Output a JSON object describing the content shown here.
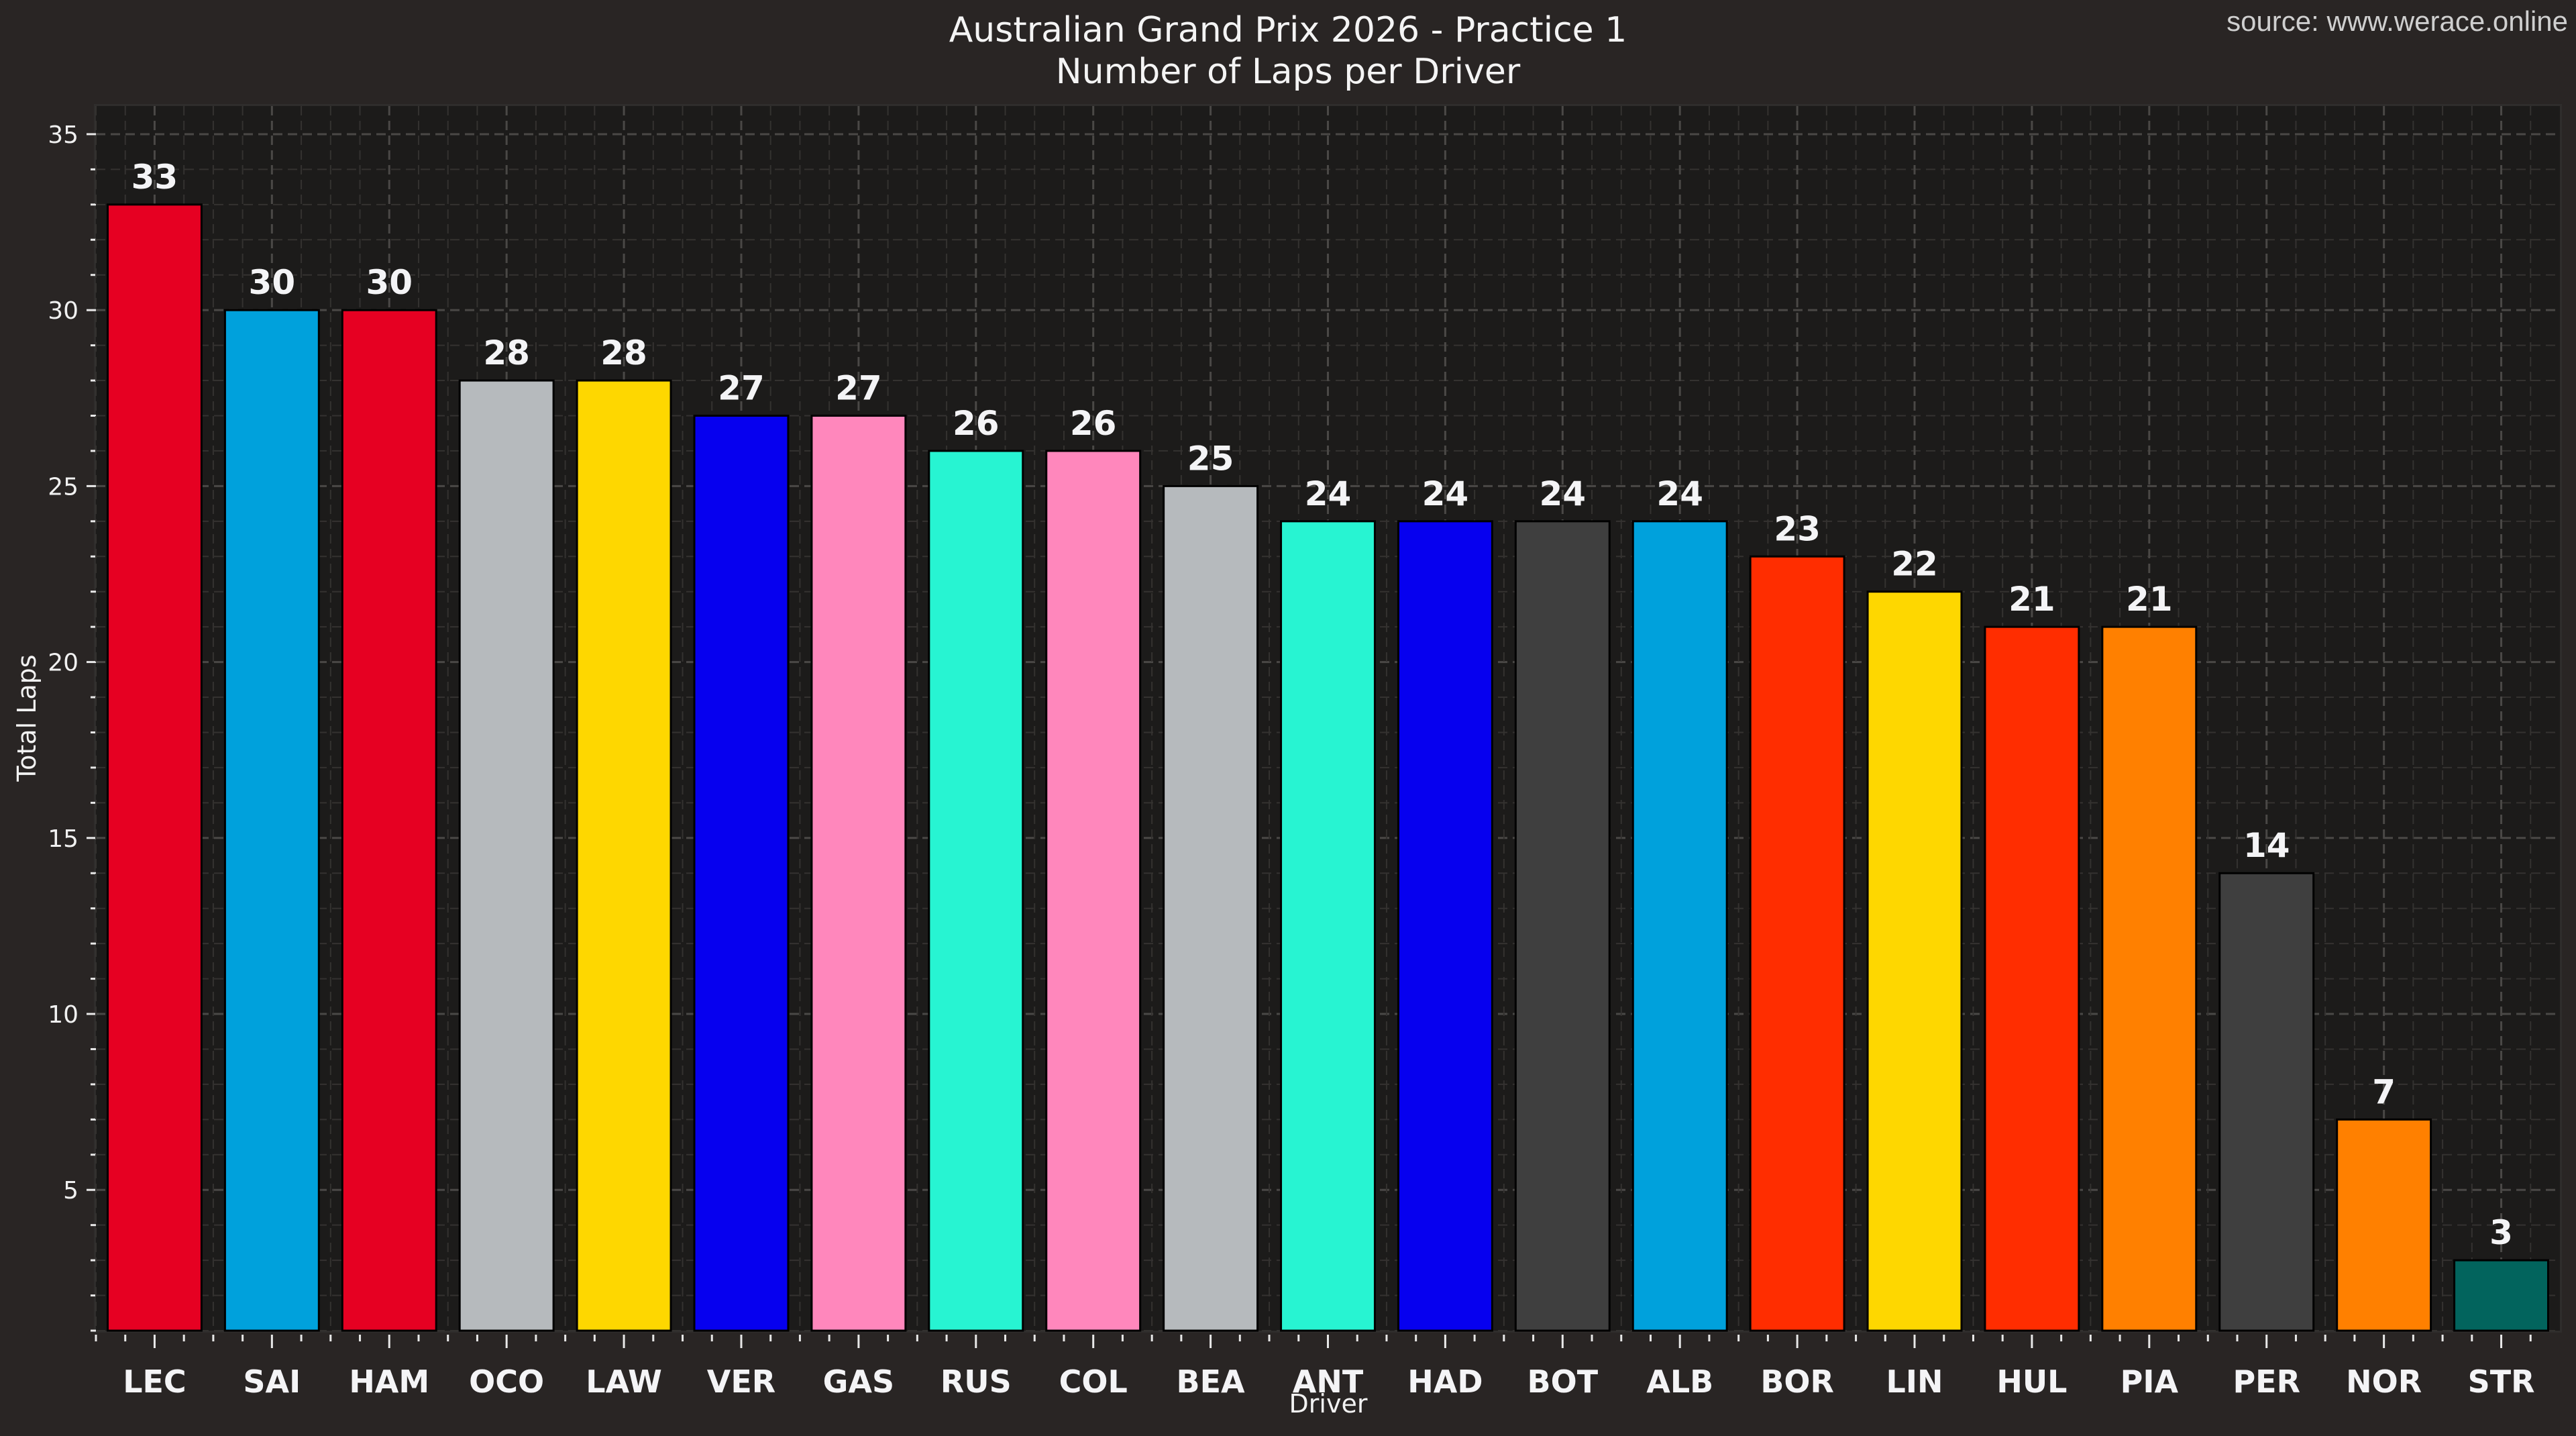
{
  "header": {
    "title": "Australian Grand Prix 2026 - Practice 1",
    "subtitle": "Number of Laps per Driver",
    "source": "source: www.werace.online"
  },
  "axes": {
    "xlabel": "Driver",
    "ylabel": "Total Laps",
    "yticks": [
      5,
      10,
      15,
      20,
      25,
      30,
      35
    ]
  },
  "colors": {
    "background": "#292524",
    "plot_background": "#1c1b1a",
    "grid": "#4a4846",
    "text": "#f2f2f2"
  },
  "chart_data": {
    "type": "bar",
    "title": "Australian Grand Prix 2026 - Practice 1",
    "subtitle": "Number of Laps per Driver",
    "xlabel": "Driver",
    "ylabel": "Total Laps",
    "ylim": [
      1,
      35.8
    ],
    "grid": true,
    "categories": [
      "LEC",
      "SAI",
      "HAM",
      "OCO",
      "LAW",
      "VER",
      "GAS",
      "RUS",
      "COL",
      "BEA",
      "ANT",
      "HAD",
      "BOT",
      "ALB",
      "BOR",
      "LIN",
      "HUL",
      "PIA",
      "PER",
      "NOR",
      "STR"
    ],
    "values": [
      33,
      30,
      30,
      28,
      28,
      27,
      27,
      26,
      26,
      25,
      24,
      24,
      24,
      24,
      23,
      22,
      21,
      21,
      14,
      7,
      3
    ],
    "bar_colors": [
      "#e60022",
      "#00a1dc",
      "#e60022",
      "#b6babd",
      "#fed700",
      "#0600ef",
      "#ff87bc",
      "#27f4d2",
      "#ff87bc",
      "#b6babd",
      "#27f4d2",
      "#0600ef",
      "#3f3f3f",
      "#00a1dc",
      "#ff2d00",
      "#fed700",
      "#ff2d00",
      "#ff8000",
      "#3f3f3f",
      "#ff8000",
      "#02645d"
    ],
    "annotations": "value labels above each bar",
    "legend": null
  }
}
